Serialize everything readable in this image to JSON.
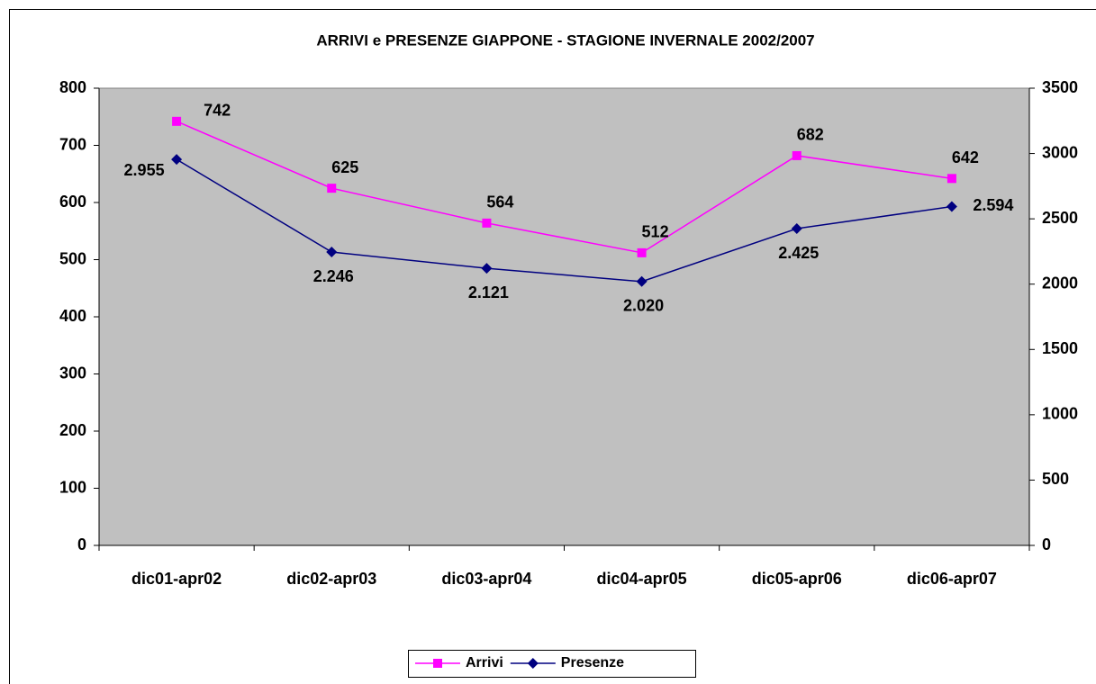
{
  "chart_data": {
    "type": "line",
    "title": "ARRIVI e PRESENZE GIAPPONE - STAGIONE INVERNALE 2002/2007",
    "categories": [
      "dic01-apr02",
      "dic02-apr03",
      "dic03-apr04",
      "dic04-apr05",
      "dic05-apr06",
      "dic06-apr07"
    ],
    "series": [
      {
        "name": "Arrivi",
        "color": "#ff00ff",
        "marker": "square",
        "values": [
          742,
          625,
          564,
          512,
          682,
          642
        ]
      },
      {
        "name": "Presenze",
        "color": "#000080",
        "marker": "diamond",
        "axis": "y2",
        "values": [
          2955,
          2246,
          2121,
          2020,
          2425,
          2594
        ],
        "value_labels": [
          "2.955",
          "2.246",
          "2.121",
          "2.020",
          "2.425",
          "2.594"
        ]
      }
    ],
    "ylim": [
      0,
      800
    ],
    "yticks": [
      0,
      100,
      200,
      300,
      400,
      500,
      600,
      700,
      800
    ],
    "y2lim": [
      0,
      3500
    ],
    "y2ticks": [
      0,
      500,
      1000,
      1500,
      2000,
      2500,
      3000,
      3500
    ],
    "legend": "bottom",
    "plot_background": "#c0c0c0"
  }
}
